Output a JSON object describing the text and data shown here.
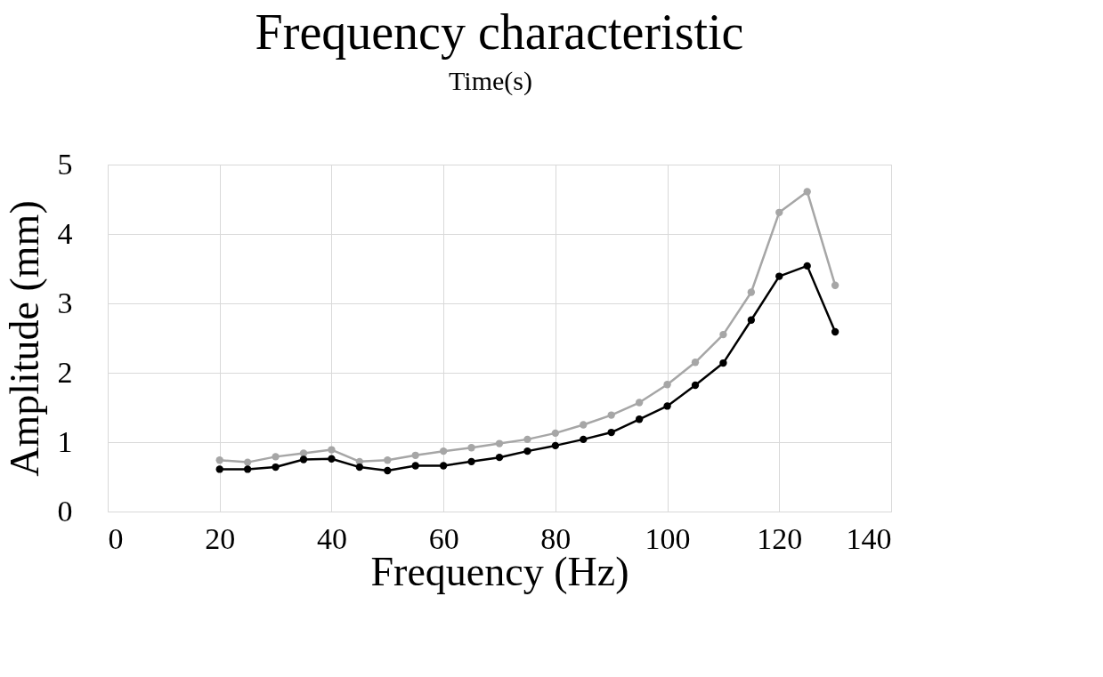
{
  "chart_data": {
    "type": "line",
    "title": "Frequency characteristic",
    "xlabel": "Frequency (Hz)",
    "ylabel": "Amplitude (mm)",
    "annotations": [
      "Time(s)"
    ],
    "x": [
      20,
      25,
      30,
      35,
      40,
      45,
      50,
      55,
      60,
      65,
      70,
      75,
      80,
      85,
      90,
      95,
      100,
      105,
      110,
      115,
      120,
      125,
      130
    ],
    "series": [
      {
        "color": "#a6a6a6",
        "values": [
          0.74,
          0.71,
          0.79,
          0.84,
          0.89,
          0.72,
          0.74,
          0.81,
          0.87,
          0.92,
          0.98,
          1.04,
          1.13,
          1.25,
          1.39,
          1.57,
          1.83,
          2.15,
          2.55,
          3.16,
          4.31,
          4.61,
          3.26
        ]
      },
      {
        "color": "#000000",
        "values": [
          0.61,
          0.61,
          0.64,
          0.75,
          0.76,
          0.64,
          0.59,
          0.66,
          0.66,
          0.72,
          0.78,
          0.87,
          0.95,
          1.04,
          1.14,
          1.33,
          1.52,
          1.82,
          2.14,
          2.76,
          3.39,
          3.54,
          2.59
        ]
      }
    ],
    "xlim": [
      0,
      140
    ],
    "xticks": [
      0,
      20,
      40,
      60,
      80,
      100,
      120,
      140
    ],
    "ylim": [
      0,
      5
    ],
    "yticks": [
      0,
      1,
      2,
      3,
      4,
      5
    ],
    "grid": true,
    "marker": "circle",
    "line_style": "solid",
    "legend": false
  }
}
